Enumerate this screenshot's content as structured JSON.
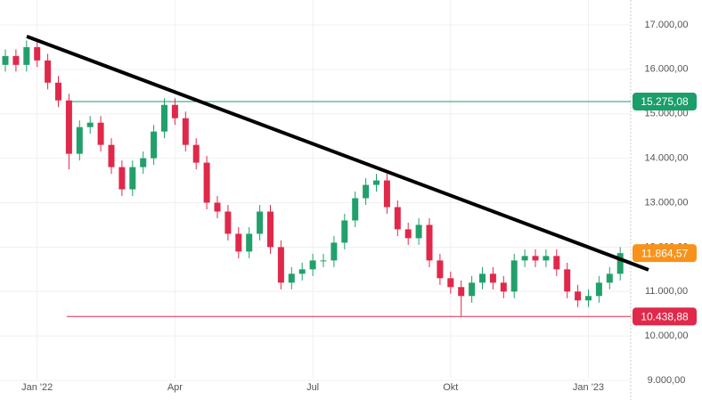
{
  "chart_data": {
    "type": "candlestick",
    "categories": [
      null,
      null,
      null,
      "Jan '22",
      null,
      null,
      null,
      null,
      null,
      null,
      null,
      null,
      null,
      null,
      null,
      null,
      "Apr",
      null,
      null,
      null,
      null,
      null,
      null,
      null,
      null,
      null,
      null,
      null,
      null,
      "Jul",
      null,
      null,
      null,
      null,
      null,
      null,
      null,
      null,
      null,
      null,
      null,
      null,
      "Okt",
      null,
      null,
      null,
      null,
      null,
      null,
      null,
      null,
      null,
      null,
      null,
      null,
      "Jan '23",
      null,
      null,
      null
    ],
    "open": [
      16100,
      16300,
      16100,
      16500,
      16200,
      15700,
      15300,
      14100,
      14700,
      14800,
      14300,
      13800,
      13300,
      13800,
      14000,
      14600,
      15200,
      14900,
      14300,
      13900,
      13000,
      12800,
      12300,
      11900,
      12300,
      12800,
      12000,
      11200,
      11400,
      11500,
      11700,
      11700,
      12100,
      12600,
      13100,
      13400,
      13500,
      12900,
      12400,
      12200,
      12500,
      11700,
      11300,
      11100,
      10900,
      11200,
      11400,
      11200,
      11000,
      11700,
      11800,
      11700,
      11800,
      11500,
      11000,
      10800,
      10900,
      11200,
      11400
    ],
    "high": [
      16450,
      16450,
      16650,
      16650,
      16350,
      15850,
      15450,
      14850,
      14950,
      14950,
      14450,
      13950,
      13950,
      14150,
      14750,
      15350,
      15350,
      15050,
      14450,
      14050,
      13150,
      12950,
      12450,
      12450,
      12950,
      12950,
      12150,
      11550,
      11650,
      11850,
      11850,
      12250,
      12750,
      13250,
      13550,
      13650,
      13650,
      13050,
      12550,
      12650,
      12650,
      11850,
      11450,
      11250,
      11350,
      11550,
      11550,
      11350,
      11850,
      11950,
      11950,
      11950,
      11950,
      11650,
      11150,
      11050,
      11350,
      11550,
      12000
    ],
    "low": [
      15950,
      15950,
      15950,
      16050,
      15550,
      15150,
      13750,
      13950,
      14550,
      14150,
      13650,
      13150,
      13150,
      13650,
      13850,
      14450,
      14750,
      14150,
      13750,
      12850,
      12650,
      12150,
      11750,
      11750,
      12150,
      11850,
      11050,
      11050,
      11250,
      11350,
      11550,
      11550,
      11950,
      12450,
      12950,
      13250,
      12750,
      12250,
      12050,
      12050,
      11550,
      11150,
      10950,
      10450,
      10750,
      11050,
      11050,
      10850,
      10850,
      11550,
      11550,
      11550,
      11350,
      10850,
      10650,
      10650,
      10750,
      11050,
      11250
    ],
    "close": [
      16300,
      16100,
      16500,
      16200,
      15700,
      15300,
      14100,
      14700,
      14800,
      14300,
      13800,
      13300,
      13800,
      14000,
      14600,
      15200,
      14900,
      14300,
      13900,
      13000,
      12800,
      12300,
      11900,
      12300,
      12800,
      12000,
      11200,
      11400,
      11500,
      11700,
      11700,
      12100,
      12600,
      13100,
      13400,
      13500,
      12900,
      12400,
      12200,
      12500,
      11700,
      11300,
      11100,
      10900,
      11200,
      11400,
      11200,
      11000,
      11700,
      11800,
      11700,
      11800,
      11500,
      11000,
      10800,
      10900,
      11200,
      11400,
      11864.57
    ],
    "up_color": "#22a06b",
    "down_color": "#e0294a",
    "ylim": [
      8560,
      17560
    ],
    "yticks": [
      {
        "value": 9000,
        "label": "9.000,00"
      },
      {
        "value": 10000,
        "label": "10.000,00"
      },
      {
        "value": 11000,
        "label": "11.000,00"
      },
      {
        "value": 12000,
        "label": "12.000,00"
      },
      {
        "value": 13000,
        "label": "13.000,00"
      },
      {
        "value": 14000,
        "label": "14.000,00"
      },
      {
        "value": 15000,
        "label": "15.000,00"
      },
      {
        "value": 16000,
        "label": "16.000,00"
      },
      {
        "value": 17000,
        "label": "17.000,00"
      }
    ],
    "hlines": [
      {
        "value": 15275.08,
        "label": "15.275,08",
        "color": "#1a9e6a"
      },
      {
        "value": 10438.88,
        "label": "10.438,88",
        "color": "#e0294a"
      }
    ],
    "last_price": {
      "value": 11864.57,
      "label": "11.864,57",
      "color": "#f7931a"
    },
    "trendline": {
      "start": 16740,
      "end": 11490,
      "color": "#000000"
    },
    "grid": true
  }
}
